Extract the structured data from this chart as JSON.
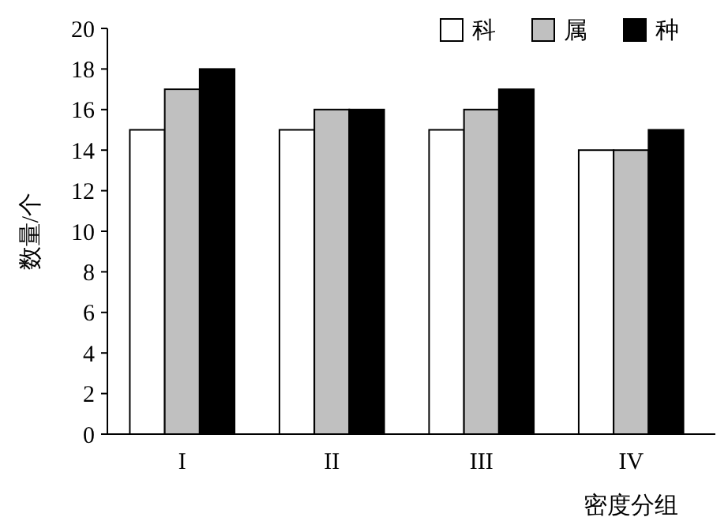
{
  "chart_data": {
    "type": "bar",
    "xlabel": "密度分组",
    "ylabel": "数量/个",
    "categories": [
      "I",
      "II",
      "III",
      "IV"
    ],
    "series": [
      {
        "name": "科",
        "color": "#ffffff",
        "values": [
          15,
          15,
          15,
          14
        ]
      },
      {
        "name": "属",
        "color": "#c0c0c0",
        "values": [
          17,
          16,
          16,
          14
        ]
      },
      {
        "name": "种",
        "color": "#000000",
        "values": [
          18,
          16,
          17,
          15
        ]
      }
    ],
    "ylim": [
      0,
      20
    ],
    "yticks": [
      0,
      2,
      4,
      6,
      8,
      10,
      12,
      14,
      16,
      18,
      20
    ],
    "grid": false,
    "legend": "top right"
  }
}
